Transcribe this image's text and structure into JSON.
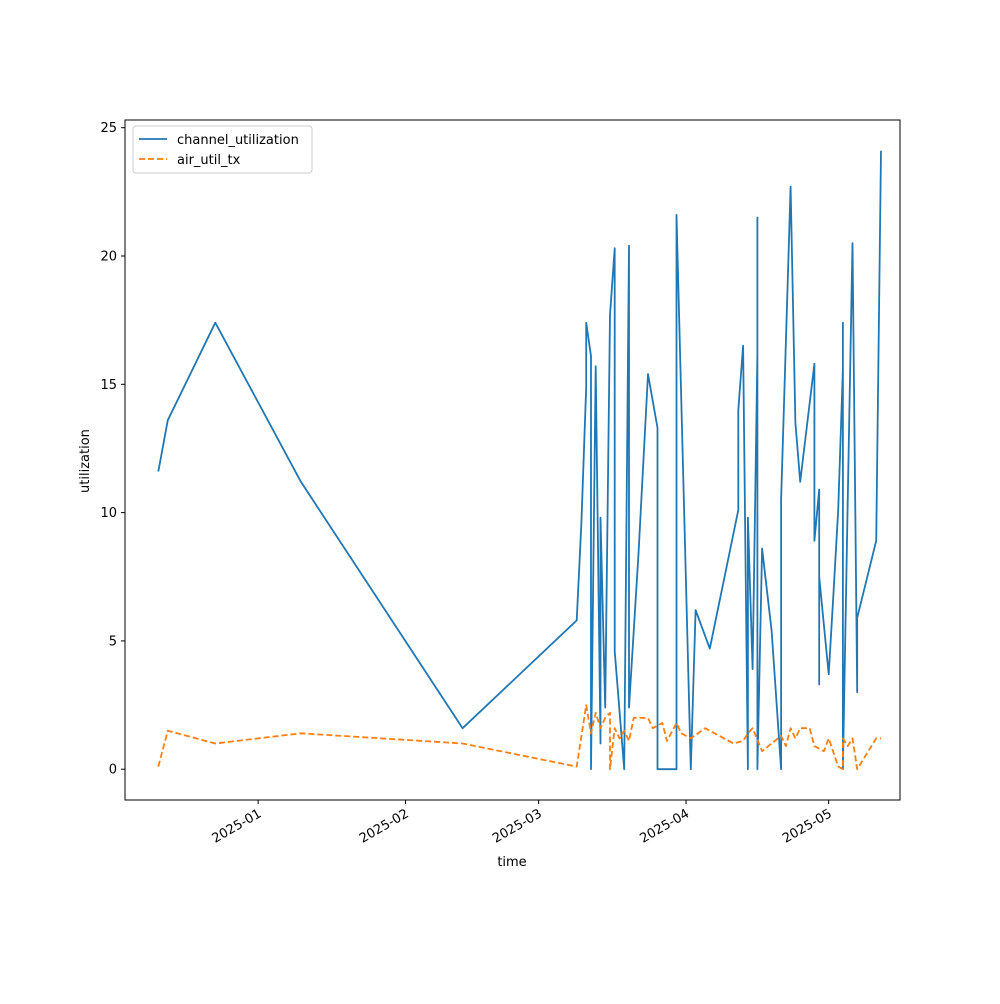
{
  "chart_data": {
    "type": "line",
    "xlabel": "time",
    "ylabel": "utilization",
    "x_axis_kind": "date",
    "xlim": [
      "2024-12-04",
      "2025-05-16"
    ],
    "ylim": [
      -1.2,
      25.3
    ],
    "xticks": [
      "2025-01-01",
      "2025-02-01",
      "2025-03-01",
      "2025-04-01",
      "2025-05-01"
    ],
    "xtick_labels": [
      "2025-01",
      "2025-02",
      "2025-03",
      "2025-04",
      "2025-05"
    ],
    "yticks": [
      0,
      5,
      10,
      15,
      20,
      25
    ],
    "ytick_labels": [
      "0",
      "5",
      "10",
      "15",
      "20",
      "25"
    ],
    "grid": false,
    "legend_location": "upper left",
    "series": [
      {
        "name": "channel_utilization",
        "color": "#1f77b4",
        "linestyle": "solid",
        "points": [
          [
            "2024-12-11",
            11.6
          ],
          [
            "2024-12-13",
            13.6
          ],
          [
            "2024-12-23",
            17.4
          ],
          [
            "2025-01-10",
            11.2
          ],
          [
            "2025-02-13",
            1.6
          ],
          [
            "2025-03-09",
            5.8
          ],
          [
            "2025-03-10",
            9.6
          ],
          [
            "2025-03-11",
            14.9
          ],
          [
            "2025-03-11",
            17.4
          ],
          [
            "2025-03-12",
            16.1
          ],
          [
            "2025-03-12",
            0.0
          ],
          [
            "2025-03-13",
            15.7
          ],
          [
            "2025-03-14",
            1.0
          ],
          [
            "2025-03-14",
            9.8
          ],
          [
            "2025-03-15",
            2.4
          ],
          [
            "2025-03-16",
            17.7
          ],
          [
            "2025-03-17",
            20.3
          ],
          [
            "2025-03-17",
            4.6
          ],
          [
            "2025-03-19",
            0.0
          ],
          [
            "2025-03-20",
            20.4
          ],
          [
            "2025-03-20",
            2.4
          ],
          [
            "2025-03-22",
            8.4
          ],
          [
            "2025-03-24",
            15.4
          ],
          [
            "2025-03-26",
            13.3
          ],
          [
            "2025-03-26",
            0.0
          ],
          [
            "2025-03-30",
            0.0
          ],
          [
            "2025-03-30",
            21.6
          ],
          [
            "2025-04-02",
            0.0
          ],
          [
            "2025-04-03",
            6.2
          ],
          [
            "2025-04-06",
            4.7
          ],
          [
            "2025-04-12",
            10.1
          ],
          [
            "2025-04-12",
            14.0
          ],
          [
            "2025-04-13",
            16.5
          ],
          [
            "2025-04-14",
            0.0
          ],
          [
            "2025-04-14",
            9.8
          ],
          [
            "2025-04-15",
            3.9
          ],
          [
            "2025-04-16",
            16.2
          ],
          [
            "2025-04-16",
            14.7
          ],
          [
            "2025-04-16",
            21.5
          ],
          [
            "2025-04-16",
            0.0
          ],
          [
            "2025-04-17",
            8.6
          ],
          [
            "2025-04-19",
            5.4
          ],
          [
            "2025-04-21",
            0.0
          ],
          [
            "2025-04-21",
            10.5
          ],
          [
            "2025-04-23",
            22.7
          ],
          [
            "2025-04-24",
            13.5
          ],
          [
            "2025-04-25",
            11.2
          ],
          [
            "2025-04-28",
            15.8
          ],
          [
            "2025-04-28",
            8.9
          ],
          [
            "2025-04-29",
            10.9
          ],
          [
            "2025-04-29",
            3.3
          ],
          [
            "2025-04-29",
            7.5
          ],
          [
            "2025-05-01",
            3.7
          ],
          [
            "2025-05-02",
            6.8
          ],
          [
            "2025-05-03",
            10.1
          ],
          [
            "2025-05-04",
            15.6
          ],
          [
            "2025-05-04",
            17.4
          ],
          [
            "2025-05-04",
            0.0
          ],
          [
            "2025-05-05",
            10.4
          ],
          [
            "2025-05-06",
            20.5
          ],
          [
            "2025-05-07",
            3.0
          ],
          [
            "2025-05-07",
            5.9
          ],
          [
            "2025-05-11",
            8.9
          ],
          [
            "2025-05-12",
            24.1
          ]
        ]
      },
      {
        "name": "air_util_tx",
        "color": "#ff7f0e",
        "linestyle": "dashed",
        "points": [
          [
            "2024-12-11",
            0.1
          ],
          [
            "2024-12-13",
            1.5
          ],
          [
            "2024-12-23",
            1.0
          ],
          [
            "2025-01-10",
            1.4
          ],
          [
            "2025-02-13",
            1.0
          ],
          [
            "2025-03-09",
            0.1
          ],
          [
            "2025-03-11",
            2.5
          ],
          [
            "2025-03-12",
            1.4
          ],
          [
            "2025-03-13",
            2.2
          ],
          [
            "2025-03-14",
            1.6
          ],
          [
            "2025-03-15",
            2.0
          ],
          [
            "2025-03-16",
            2.2
          ],
          [
            "2025-03-16",
            0.0
          ],
          [
            "2025-03-17",
            1.6
          ],
          [
            "2025-03-18",
            1.2
          ],
          [
            "2025-03-19",
            1.5
          ],
          [
            "2025-03-20",
            1.1
          ],
          [
            "2025-03-21",
            2.0
          ],
          [
            "2025-03-24",
            2.0
          ],
          [
            "2025-03-25",
            1.6
          ],
          [
            "2025-03-27",
            1.8
          ],
          [
            "2025-03-28",
            1.1
          ],
          [
            "2025-03-30",
            1.8
          ],
          [
            "2025-03-31",
            1.4
          ],
          [
            "2025-04-02",
            1.2
          ],
          [
            "2025-04-05",
            1.6
          ],
          [
            "2025-04-09",
            1.2
          ],
          [
            "2025-04-11",
            1.0
          ],
          [
            "2025-04-13",
            1.1
          ],
          [
            "2025-04-14",
            1.4
          ],
          [
            "2025-04-15",
            1.6
          ],
          [
            "2025-04-17",
            0.7
          ],
          [
            "2025-04-19",
            1.0
          ],
          [
            "2025-04-21",
            1.3
          ],
          [
            "2025-04-22",
            0.9
          ],
          [
            "2025-04-23",
            1.6
          ],
          [
            "2025-04-24",
            1.2
          ],
          [
            "2025-04-25",
            1.6
          ],
          [
            "2025-04-27",
            1.6
          ],
          [
            "2025-04-28",
            0.9
          ],
          [
            "2025-04-30",
            0.7
          ],
          [
            "2025-05-01",
            1.2
          ],
          [
            "2025-05-03",
            0.1
          ],
          [
            "2025-05-04",
            0.0
          ],
          [
            "2025-05-04",
            1.2
          ],
          [
            "2025-05-05",
            0.9
          ],
          [
            "2025-05-06",
            1.2
          ],
          [
            "2025-05-07",
            0.0
          ],
          [
            "2025-05-09",
            0.6
          ],
          [
            "2025-05-11",
            1.2
          ],
          [
            "2025-05-12",
            1.2
          ]
        ]
      }
    ]
  }
}
